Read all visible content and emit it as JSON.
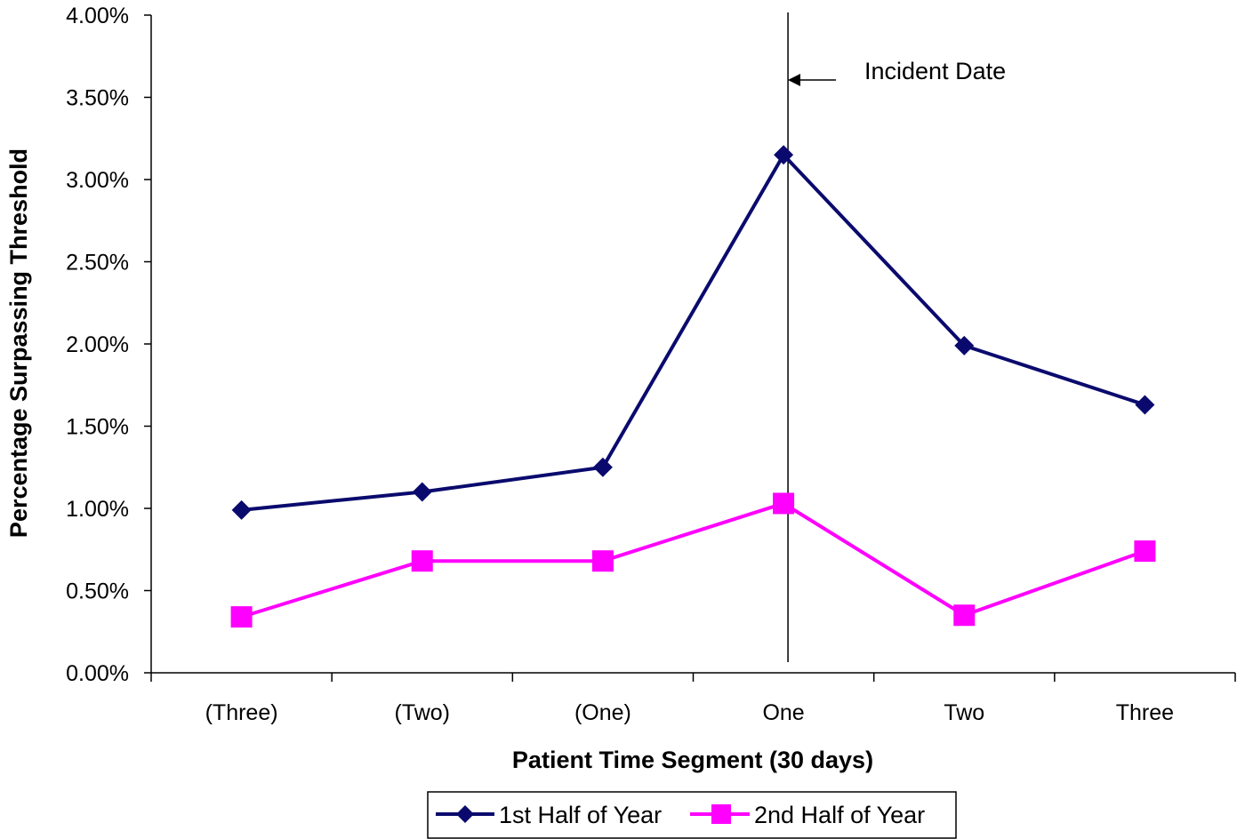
{
  "chart_data": {
    "type": "line",
    "title": "",
    "xlabel": "Patient Time Segment (30 days)",
    "ylabel": "Percentage Surpassing Threshold",
    "categories": [
      "(Three)",
      "(Two)",
      "(One)",
      "One",
      "Two",
      "Three"
    ],
    "yticks": [
      "0.00%",
      "0.50%",
      "1.00%",
      "1.50%",
      "2.00%",
      "2.50%",
      "3.00%",
      "3.50%",
      "4.00%"
    ],
    "ylim": [
      0,
      0.04
    ],
    "grid": false,
    "legend_position": "bottom",
    "series": [
      {
        "name": "1st Half of Year",
        "color": "#0a0a6e",
        "marker": "diamond",
        "values": [
          0.0099,
          0.011,
          0.0125,
          0.0315,
          0.0199,
          0.0163
        ]
      },
      {
        "name": "2nd Half of Year",
        "color": "#ff00ff",
        "marker": "square",
        "values": [
          0.0034,
          0.0068,
          0.0068,
          0.0103,
          0.0035,
          0.0074
        ]
      }
    ],
    "annotation": {
      "text": "Incident Date",
      "at_category": "One"
    }
  }
}
